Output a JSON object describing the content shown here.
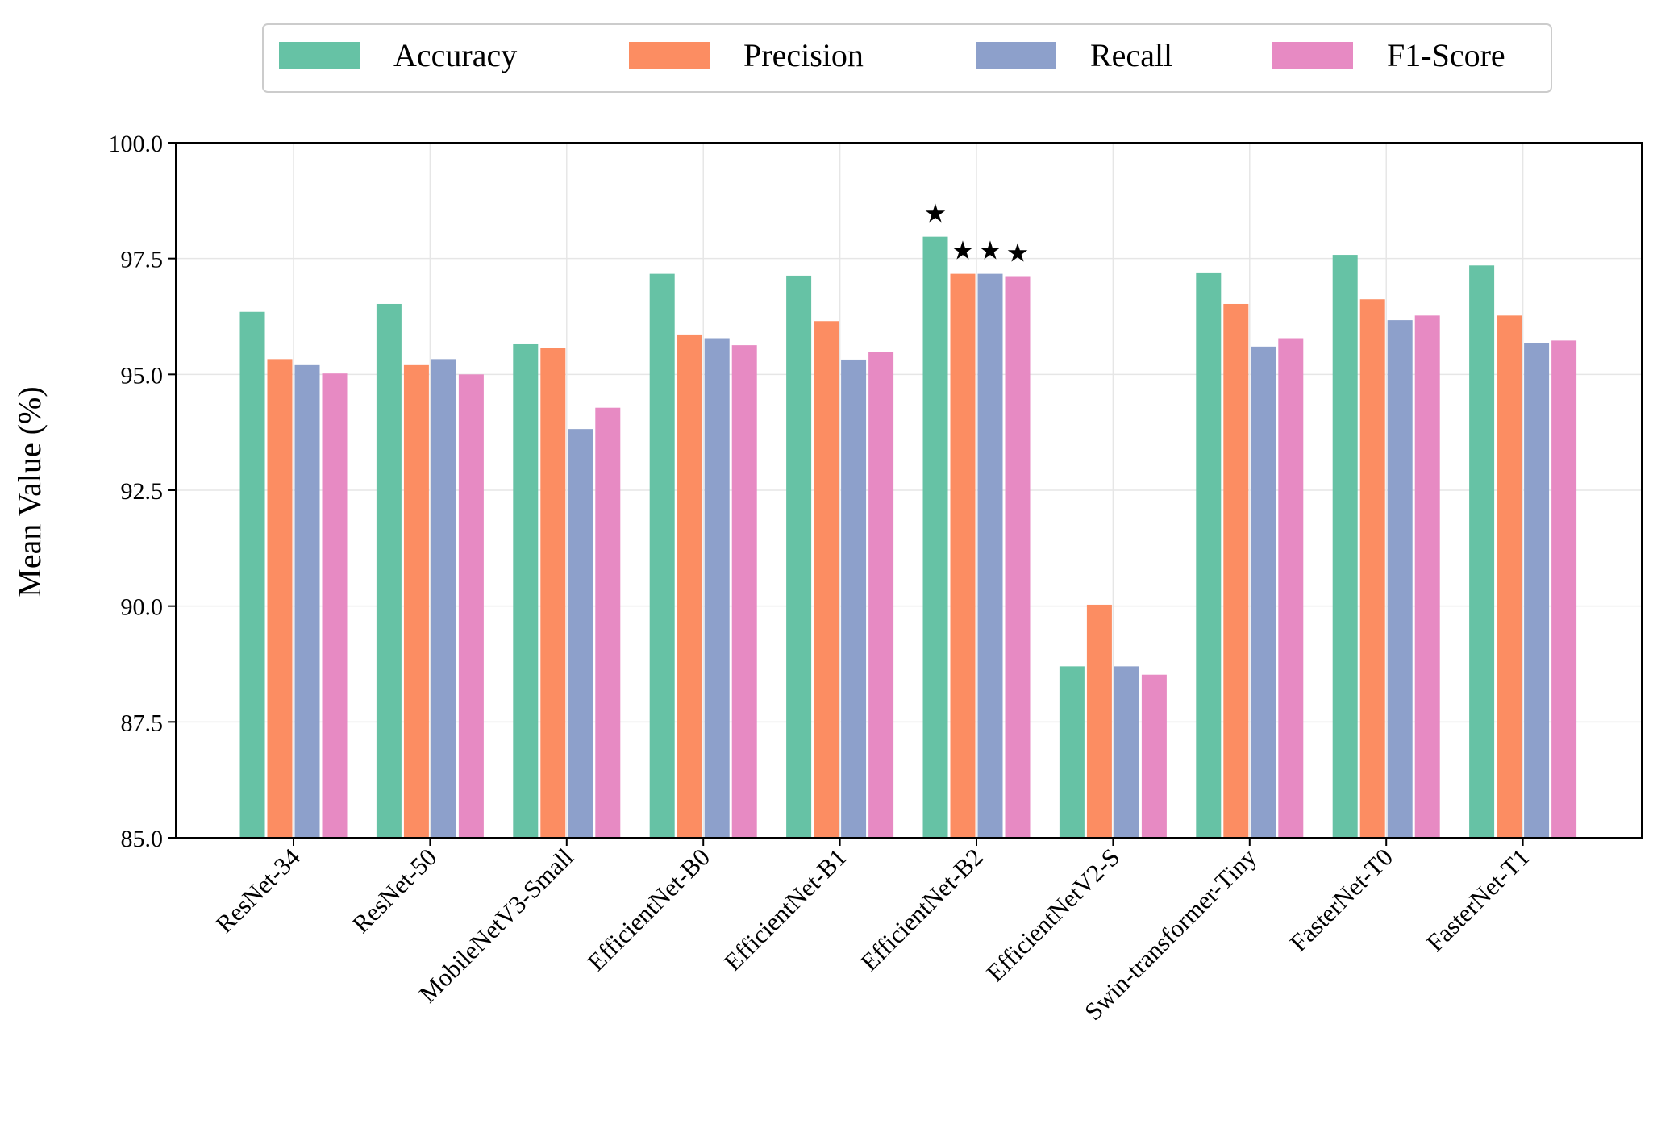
{
  "chart_data": {
    "type": "bar",
    "ylabel": "Mean Value (%)",
    "xlabel": "",
    "ylim": [
      85.0,
      100.0
    ],
    "yticks": [
      "85.0",
      "87.5",
      "90.0",
      "92.5",
      "95.0",
      "97.5",
      "100.0"
    ],
    "grid": true,
    "legend_position": "top-center",
    "categories": [
      "ResNet-34",
      "ResNet-50",
      "MobileNetV3-Small",
      "EfficientNet-B0",
      "EfficientNet-B1",
      "EfficientNet-B2",
      "EfficientNetV2-S",
      "Swin-transformer-Tiny",
      "FasterNet-T0",
      "FasterNet-T1"
    ],
    "series": [
      {
        "name": "Accuracy",
        "color": "#66c2a5",
        "values": [
          96.35,
          96.52,
          95.65,
          97.17,
          97.13,
          97.97,
          88.7,
          97.2,
          97.58,
          97.35
        ]
      },
      {
        "name": "Precision",
        "color": "#fc8d62",
        "values": [
          95.33,
          95.2,
          95.58,
          95.86,
          96.15,
          97.17,
          90.03,
          96.52,
          96.62,
          96.27
        ]
      },
      {
        "name": "Recall",
        "color": "#8da0cb",
        "values": [
          95.2,
          95.33,
          93.82,
          95.78,
          95.32,
          97.17,
          88.7,
          95.6,
          96.17,
          95.67
        ]
      },
      {
        "name": "F1-Score",
        "color": "#e78ac3",
        "values": [
          95.02,
          95.0,
          94.28,
          95.63,
          95.48,
          97.12,
          88.52,
          95.78,
          96.27,
          95.73
        ]
      }
    ],
    "best_markers": [
      {
        "category": "EfficientNet-B2",
        "series": "Accuracy",
        "symbol": "★"
      },
      {
        "category": "EfficientNet-B2",
        "series": "Precision",
        "symbol": "★"
      },
      {
        "category": "EfficientNet-B2",
        "series": "Recall",
        "symbol": "★"
      },
      {
        "category": "EfficientNet-B2",
        "series": "F1-Score",
        "symbol": "★"
      }
    ]
  }
}
